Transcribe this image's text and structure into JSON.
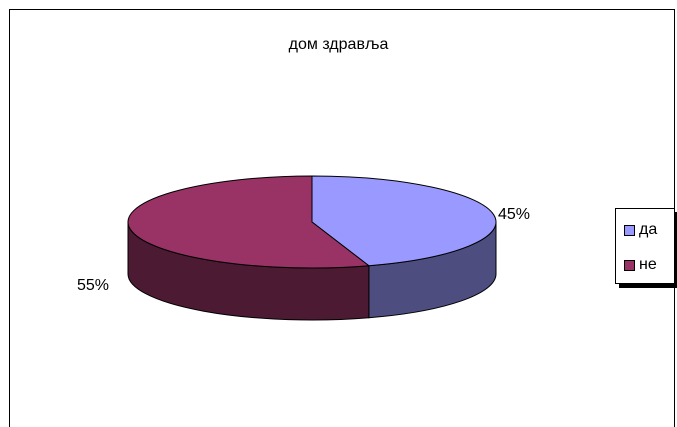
{
  "chart_data": {
    "type": "pie",
    "title": "дом здравља",
    "categories": [
      "да",
      "не"
    ],
    "values": [
      45,
      55
    ],
    "data_labels": [
      "45%",
      "55%"
    ],
    "colors": [
      "#9999ff",
      "#993366"
    ],
    "style": "3d",
    "legend": {
      "position": "right",
      "entries": [
        "да",
        "не"
      ]
    }
  }
}
